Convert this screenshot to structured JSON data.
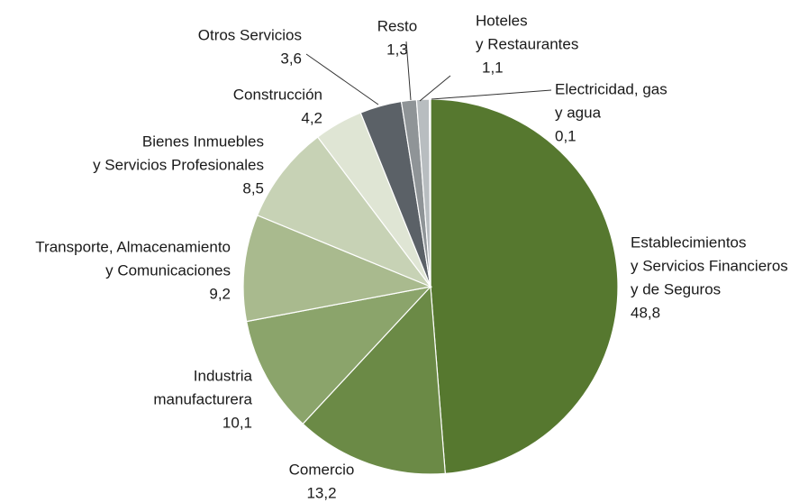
{
  "chart_data": {
    "type": "pie",
    "categories": [
      [
        "Establecimientos",
        "y Servicios Financieros",
        "y de Seguros"
      ],
      [
        "Comercio"
      ],
      [
        "Industria",
        "manufacturera"
      ],
      [
        "Transporte, Almacenamiento",
        "y Comunicaciones"
      ],
      [
        "Bienes Inmuebles",
        "y Servicios Profesionales"
      ],
      [
        "Construcción"
      ],
      [
        "Otros Servicios"
      ],
      [
        "Resto"
      ],
      [
        "Hoteles",
        "y Restaurantes"
      ],
      [
        "Electricidad, gas",
        "y agua"
      ]
    ],
    "values": [
      48.8,
      13.2,
      10.1,
      9.2,
      8.5,
      4.2,
      3.6,
      1.3,
      1.1,
      0.1
    ],
    "value_labels": [
      "48,8",
      "13,2",
      "10,1",
      "9,2",
      "8,5",
      "4,2",
      "3,6",
      "1,3",
      "1,1",
      "0,1"
    ],
    "colors": [
      "#56782f",
      "#6b8a46",
      "#8ba46b",
      "#a9ba8e",
      "#c7d2b5",
      "#dfe5d4",
      "#5b6167",
      "#8f9497",
      "#b8bdc0",
      "#d6d9db"
    ]
  }
}
